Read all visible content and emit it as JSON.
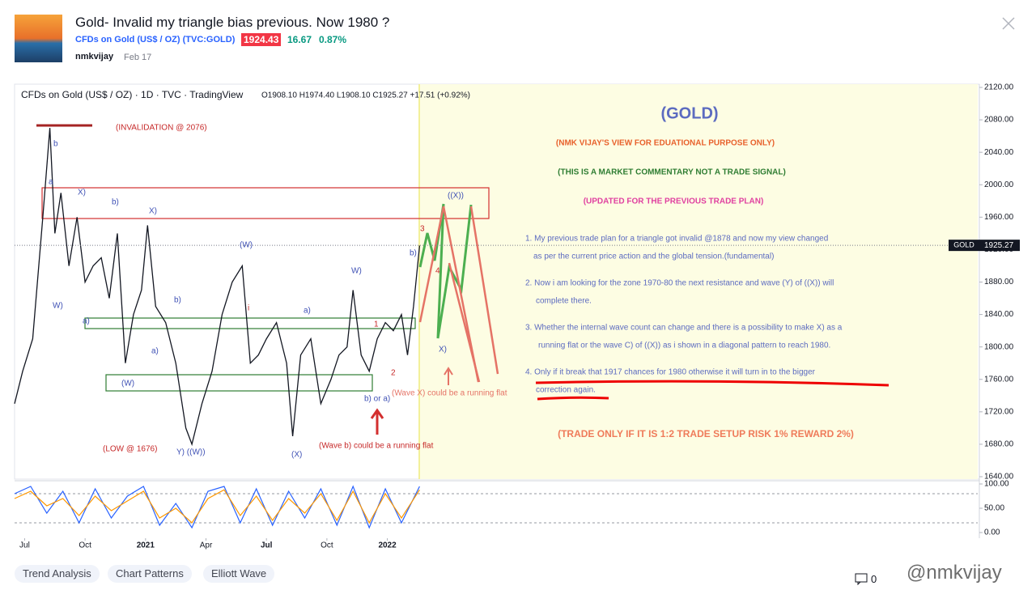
{
  "header": {
    "title": "Gold- Invalid my triangle bias previous. Now 1980 ?",
    "symbol": "CFDs on Gold (US$ / OZ) (TVC:GOLD)",
    "price": "1924.43",
    "change": "16.67",
    "change_pct": "0.87%",
    "author": "nmkvijay",
    "date": "Feb 17"
  },
  "chart_data": [
    {
      "type": "line",
      "legend": "CFDs on Gold (US$ / OZ) · 1D · TVC · TradingView",
      "ohlc": "O1908.10 H1974.40 L1908.10 C1925.27 +17.51 (+0.92%)",
      "color": "#131722",
      "x": [
        -0.5,
        -0.1,
        0.4,
        0.9,
        1.25,
        1.5,
        1.8,
        2.2,
        2.6,
        3.0,
        3.4,
        3.8,
        4.2,
        4.6,
        5.0,
        5.4,
        5.8,
        6.1,
        6.5,
        7.0,
        7.5,
        8.0,
        8.3,
        8.8,
        9.3,
        9.8,
        10.3,
        10.8,
        11.2,
        11.6,
        12.0,
        12.5,
        13.0,
        13.3,
        13.7,
        14.2,
        14.7,
        15.2,
        15.6,
        16.0,
        16.3,
        16.7,
        17.1,
        17.5,
        17.9,
        18.3,
        18.7,
        19.0,
        19.3,
        19.6
      ],
      "values": [
        1730,
        1770,
        1810,
        1960,
        2070,
        1940,
        1990,
        1900,
        1960,
        1880,
        1900,
        1910,
        1860,
        1940,
        1780,
        1840,
        1870,
        1950,
        1850,
        1830,
        1780,
        1700,
        1680,
        1730,
        1770,
        1840,
        1880,
        1900,
        1780,
        1790,
        1810,
        1830,
        1780,
        1690,
        1790,
        1810,
        1730,
        1760,
        1790,
        1800,
        1870,
        1790,
        1770,
        1810,
        1830,
        1820,
        1840,
        1790,
        1850,
        1925
      ],
      "xlim": [
        -0.5,
        47.3
      ],
      "xticks": [
        {
          "value": 0,
          "label": "Jul"
        },
        {
          "value": 3,
          "label": "Oct"
        },
        {
          "value": 6,
          "label": "2021"
        },
        {
          "value": 9,
          "label": "Apr"
        },
        {
          "value": 12,
          "label": "Jul"
        },
        {
          "value": 15,
          "label": "Oct"
        },
        {
          "value": 18,
          "label": "2022"
        }
      ],
      "ylim": [
        1640,
        2120
      ],
      "yticks": [
        {
          "value": 1640,
          "label": "1640.00"
        },
        {
          "value": 1680,
          "label": "1680.00"
        },
        {
          "value": 1720,
          "label": "1720.00"
        },
        {
          "value": 1760,
          "label": "1760.00"
        },
        {
          "value": 1800,
          "label": "1800.00"
        },
        {
          "value": 1840,
          "label": "1840.00"
        },
        {
          "value": 1880,
          "label": "1880.00"
        },
        {
          "value": 1920,
          "label": "1920.00"
        },
        {
          "value": 1960,
          "label": "1960.00"
        },
        {
          "value": 2000,
          "label": "2000.00"
        },
        {
          "value": 2040,
          "label": "2040.00"
        },
        {
          "value": 2080,
          "label": "2080.00"
        },
        {
          "value": 2120,
          "label": "2120.00"
        }
      ],
      "last_price_symbol": "GOLD",
      "last_price": 1925.27
    },
    {
      "type": "line",
      "xlim": [
        -0.5,
        47.3
      ],
      "x": [
        -0.5,
        0.3,
        1.1,
        1.9,
        2.7,
        3.5,
        4.3,
        5.1,
        5.9,
        6.7,
        7.5,
        8.3,
        9.1,
        9.9,
        10.7,
        11.5,
        12.3,
        13.1,
        13.9,
        14.7,
        15.5,
        16.3,
        17.1,
        17.9,
        18.7,
        19.6
      ],
      "series": [
        {
          "color": "#2962ff",
          "values": [
            80,
            95,
            40,
            85,
            20,
            90,
            30,
            75,
            95,
            15,
            60,
            10,
            85,
            95,
            20,
            90,
            15,
            85,
            30,
            90,
            15,
            95,
            10,
            90,
            20,
            95
          ]
        },
        {
          "color": "#ff9800",
          "values": [
            70,
            85,
            55,
            70,
            35,
            75,
            45,
            65,
            85,
            30,
            50,
            20,
            70,
            88,
            35,
            75,
            25,
            70,
            40,
            80,
            25,
            85,
            20,
            80,
            30,
            88
          ]
        }
      ],
      "ylim": [
        0,
        100
      ],
      "yticks": [
        {
          "value": 0,
          "label": "0.00"
        },
        {
          "value": 50,
          "label": "50.00"
        },
        {
          "value": 100,
          "label": "100.00"
        }
      ],
      "bands": [
        20,
        80
      ]
    }
  ],
  "annotations": [
    "(GOLD)",
    "(NMK VIJAY'S VIEW FOR EDUATIONAL PURPOSE ONLY)",
    "(THIS IS A MARKET COMMENTARY NOT A TRADE SIGNAL)",
    "(UPDATED FOR THE PREVIOUS TRADE PLAN)",
    "1. My previous trade plan for a triangle got invalid @1878 and now my view changed",
    "as per the current price action and the global tension.(fundamental)",
    "2. Now i am looking for the zone 1970-80 the next resistance and wave (Y) of ((X)) will",
    "complete there.",
    "3. Whether the internal wave count can change and there is a possibility to make X) as a",
    "running flat or the wave C) of ((X)) as i shown in a diagonal pattern to reach 1980.",
    "4. Only if it break that 1917 chances for 1980 otherwise it will turn in to the bigger",
    "correction again.",
    "(TRADE ONLY IF IT IS 1:2 TRADE SETUP RISK 1% REWARD 2%)",
    "(INVALIDATION @ 2076)",
    "(LOW @ 1676)",
    "(Wave b) could be a running flat",
    "(Wave X) could be a running flat",
    "b",
    "a",
    "X)",
    "b)",
    "X)",
    "(W)",
    "W)",
    "b)",
    "a)",
    "(W)",
    "Y) ((W))",
    "a)",
    "(X)",
    "i",
    "W)",
    "b)",
    "((X))",
    "4",
    "X)",
    "2",
    "1",
    "b) or a)",
    "3",
    "a)"
  ],
  "tags": [
    "Trend Analysis",
    "Chart Patterns",
    "Elliott Wave"
  ],
  "footer": {
    "comments": "0",
    "watermark": "@nmkvijay"
  }
}
